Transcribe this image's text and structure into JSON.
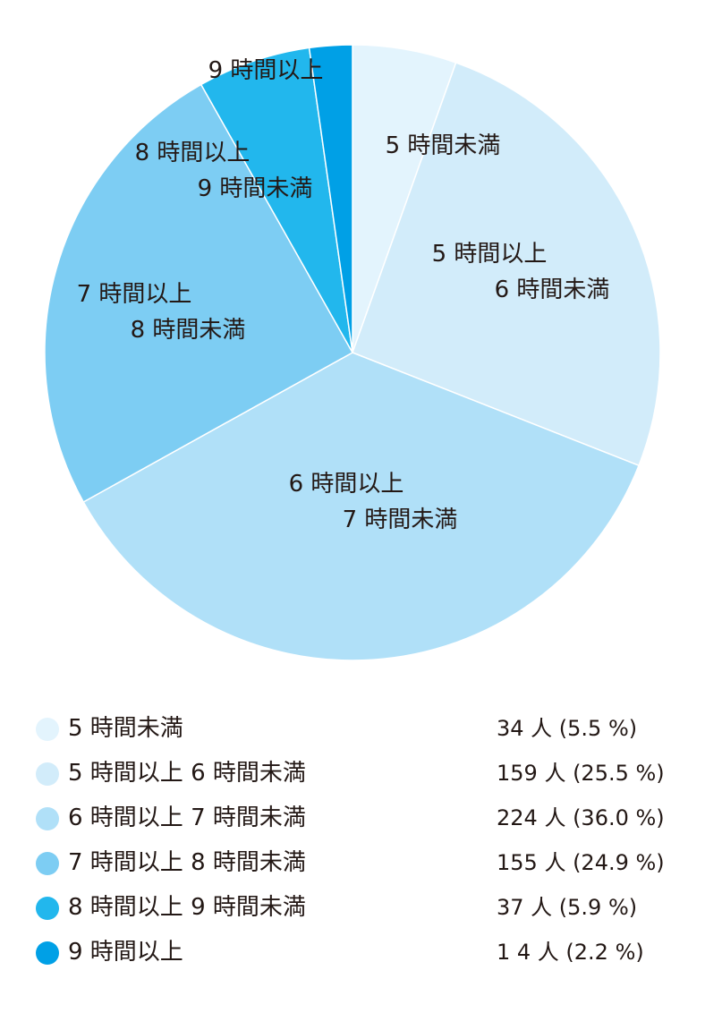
{
  "chart_data": {
    "type": "pie",
    "slices": [
      {
        "label_lines": [
          "5 時間未満"
        ],
        "legend_label": "5 時間未満",
        "count_text": "34 人 (5.5 %)",
        "value": 34,
        "percent": 5.5,
        "color": "#e3f4fd"
      },
      {
        "label_lines": [
          "5 時間以上",
          "6 時間未満"
        ],
        "legend_label": "5 時間以上 6 時間未満",
        "count_text": "159 人 (25.5 %)",
        "value": 159,
        "percent": 25.5,
        "color": "#d2ecfa"
      },
      {
        "label_lines": [
          "6 時間以上",
          "7 時間未満"
        ],
        "legend_label": "6 時間以上 7 時間未満",
        "count_text": "224 人 (36.0 %)",
        "value": 224,
        "percent": 36.0,
        "color": "#b0e0f8"
      },
      {
        "label_lines": [
          "7 時間以上",
          "8 時間未満"
        ],
        "legend_label": "7 時間以上 8 時間未満",
        "count_text": "155 人 (24.9 %)",
        "value": 155,
        "percent": 24.9,
        "color": "#7dcdf3"
      },
      {
        "label_lines": [
          "8 時間以上",
          "9 時間未満"
        ],
        "legend_label": "8 時間以上 9 時間未満",
        "count_text": "37 人 (5.9 %)",
        "value": 37,
        "percent": 5.9,
        "color": "#22b7ed"
      },
      {
        "label_lines": [
          "9 時間以上"
        ],
        "legend_label": "9 時間以上",
        "count_text": "1 4 人 (2.2 %)",
        "value": 14,
        "percent": 2.2,
        "color": "#00a0e6"
      }
    ]
  }
}
